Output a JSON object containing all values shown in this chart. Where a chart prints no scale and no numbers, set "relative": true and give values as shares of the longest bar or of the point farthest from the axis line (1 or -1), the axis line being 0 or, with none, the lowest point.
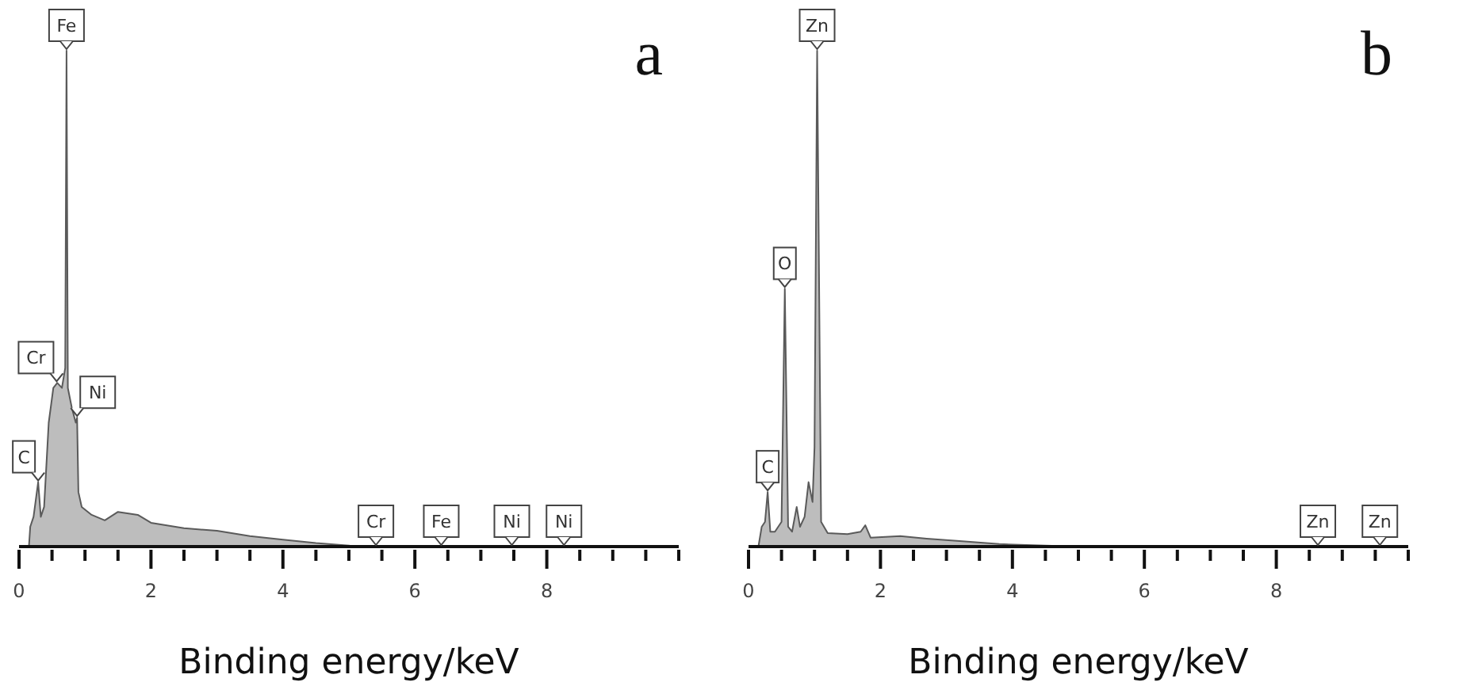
{
  "chart_data": [
    {
      "type": "area",
      "title": "a",
      "xlabel": "Binding energy/keV",
      "relative": true,
      "color": "#bdbdbd",
      "x": [
        0.15,
        0.17,
        0.22,
        0.29,
        0.33,
        0.38,
        0.45,
        0.52,
        0.58,
        0.65,
        0.7,
        0.72,
        0.74,
        0.8,
        0.86,
        0.88,
        0.9,
        0.95,
        1.1,
        1.3,
        1.5,
        1.8,
        2.0,
        2.5,
        3.0,
        3.5,
        4.0,
        4.5,
        5.0,
        5.1
      ],
      "values": [
        0,
        0.04,
        0.06,
        0.13,
        0.06,
        0.08,
        0.25,
        0.32,
        0.33,
        0.32,
        0.36,
        1,
        0.32,
        0.28,
        0.25,
        0.26,
        0.11,
        0.08,
        0.064,
        0.053,
        0.07,
        0.064,
        0.048,
        0.037,
        0.032,
        0.021,
        0.014,
        0.007,
        0.002,
        0
      ],
      "xlim": [
        0,
        10
      ],
      "xticks": [
        0,
        {
          "value": 0.5,
          "label": null
        },
        {
          "value": 1,
          "label": null
        },
        {
          "value": 1.5,
          "label": null
        },
        2,
        {
          "value": 2.5,
          "label": null
        },
        {
          "value": 3,
          "label": null
        },
        {
          "value": 3.5,
          "label": null
        },
        4,
        {
          "value": 4.5,
          "label": null
        },
        {
          "value": 5,
          "label": null
        },
        {
          "value": 5.5,
          "label": null
        },
        6,
        {
          "value": 6.5,
          "label": null
        },
        {
          "value": 7,
          "label": null
        },
        {
          "value": 7.5,
          "label": null
        },
        8,
        {
          "value": 8.5,
          "label": null
        },
        {
          "value": 9,
          "label": null
        },
        {
          "value": 9.5,
          "label": null
        },
        {
          "value": 10,
          "label": null
        }
      ],
      "annotations": [
        {
          "text": "Fe",
          "x": 0.72,
          "y": 1
        },
        {
          "text": "Cr",
          "x": 0.57,
          "y": 0.33
        },
        {
          "text": "Ni",
          "x": 0.88,
          "y": 0.26
        },
        {
          "text": "C",
          "x": 0.29,
          "y": 0.13
        },
        {
          "text": "Cr",
          "x": 5.41
        },
        {
          "text": "Fe",
          "x": 6.4
        },
        {
          "text": "Ni",
          "x": 7.47
        },
        {
          "text": "Ni",
          "x": 8.26
        }
      ]
    },
    {
      "type": "area",
      "title": "b",
      "xlabel": "Binding energy/keV",
      "relative": true,
      "color": "#bdbdbd",
      "x": [
        0.15,
        0.2,
        0.25,
        0.29,
        0.33,
        0.4,
        0.5,
        0.55,
        0.6,
        0.66,
        0.73,
        0.78,
        0.85,
        0.91,
        0.97,
        1.0,
        1.04,
        1.1,
        1.2,
        1.5,
        1.7,
        1.77,
        1.85,
        2.3,
        2.7,
        3.2,
        3.8,
        4.5,
        5.0
      ],
      "values": [
        0,
        0.04,
        0.05,
        0.11,
        0.03,
        0.03,
        0.05,
        0.52,
        0.04,
        0.03,
        0.08,
        0.04,
        0.06,
        0.13,
        0.09,
        0.2,
        1,
        0.05,
        0.027,
        0.025,
        0.03,
        0.043,
        0.018,
        0.021,
        0.016,
        0.011,
        0.005,
        0.002,
        0
      ],
      "xlim": [
        0,
        10
      ],
      "xticks": [
        0,
        {
          "value": 0.5,
          "label": null
        },
        {
          "value": 1,
          "label": null
        },
        {
          "value": 1.5,
          "label": null
        },
        2,
        {
          "value": 2.5,
          "label": null
        },
        {
          "value": 3,
          "label": null
        },
        {
          "value": 3.5,
          "label": null
        },
        4,
        {
          "value": 4.5,
          "label": null
        },
        {
          "value": 5,
          "label": null
        },
        {
          "value": 5.5,
          "label": null
        },
        6,
        {
          "value": 6.5,
          "label": null
        },
        {
          "value": 7,
          "label": null
        },
        {
          "value": 7.5,
          "label": null
        },
        8,
        {
          "value": 8.5,
          "label": null
        },
        {
          "value": 9,
          "label": null
        },
        {
          "value": 9.5,
          "label": null
        },
        {
          "value": 10,
          "label": null
        }
      ],
      "annotations": [
        {
          "text": "Zn",
          "x": 1.04,
          "y": 1
        },
        {
          "text": "O",
          "x": 0.55,
          "y": 0.52
        },
        {
          "text": "C",
          "x": 0.29,
          "y": 0.11
        },
        {
          "text": "Zn",
          "x": 8.63
        },
        {
          "text": "Zn",
          "x": 9.57
        }
      ]
    }
  ]
}
